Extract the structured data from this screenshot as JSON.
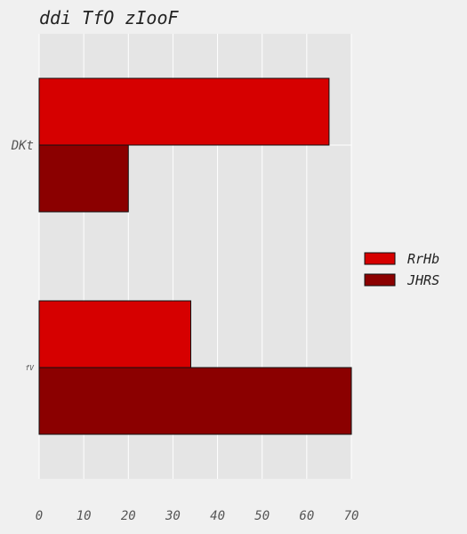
{
  "chart_data": {
    "type": "bar",
    "orientation": "horizontal",
    "title": "ddi TfO zIooF",
    "xlabel": "",
    "ylabel": "",
    "categories": [
      "DKt",
      "fV"
    ],
    "series": [
      {
        "name": "RrHb",
        "values": [
          65,
          34
        ],
        "color": "#d60000"
      },
      {
        "name": "JHRS",
        "values": [
          20,
          70
        ],
        "color": "#8b0000"
      }
    ],
    "xlim": [
      0,
      70
    ],
    "xticks": [
      0,
      10,
      20,
      30,
      40,
      50,
      60,
      70
    ],
    "grid": true,
    "legend_position": "right"
  },
  "colors": {
    "background": "#f0f0f0",
    "plot_background": "#e5e5e5",
    "grid": "#ffffff",
    "bar_edge": "#111111"
  }
}
